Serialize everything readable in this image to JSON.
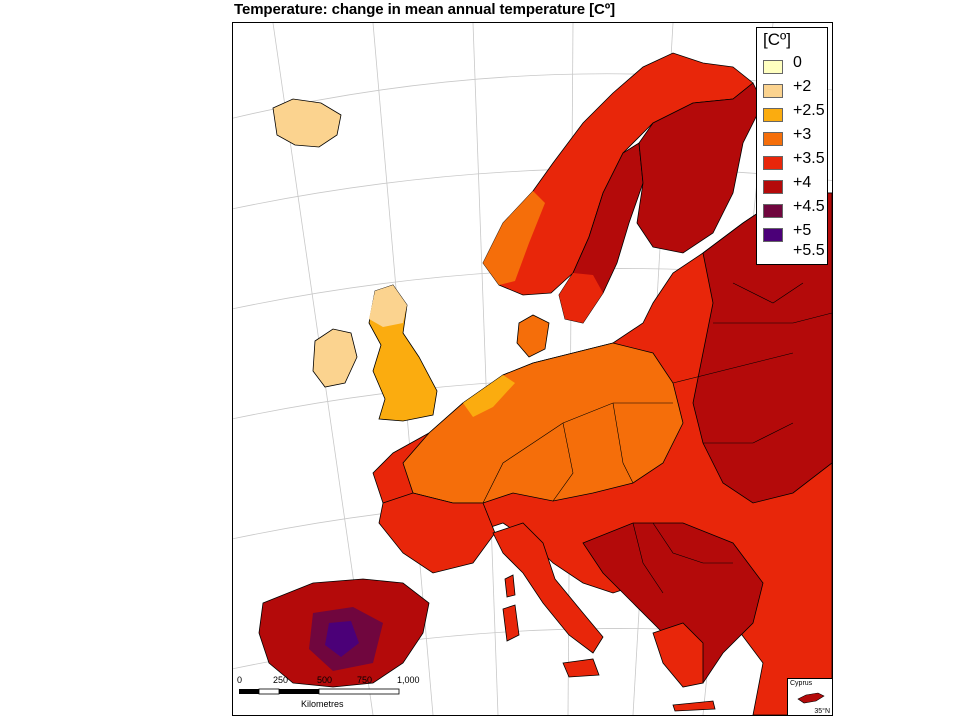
{
  "title": "Temperature: change in mean annual temperature [Cº]",
  "legend": {
    "unit": "[Cº]",
    "items": [
      {
        "label": "0",
        "color": "#ffffc0"
      },
      {
        "label": "+2",
        "color": "#fbd38f"
      },
      {
        "label": "+2.5",
        "color": "#fbac0f"
      },
      {
        "label": "+3",
        "color": "#f56e0a"
      },
      {
        "label": "+3.5",
        "color": "#e8260a"
      },
      {
        "label": "+4",
        "color": "#b40a0a"
      },
      {
        "label": "+4.5",
        "color": "#70063e"
      },
      {
        "label": "+5",
        "color": "#4b0078"
      },
      {
        "label": "+5.5",
        "color": ""
      }
    ]
  },
  "scale_bar": {
    "ticks": [
      "0",
      "250",
      "500",
      "750",
      "1,000"
    ],
    "unit": "Kilometres"
  },
  "inset": {
    "label": "Cyprus",
    "latitude": "35°N"
  }
}
